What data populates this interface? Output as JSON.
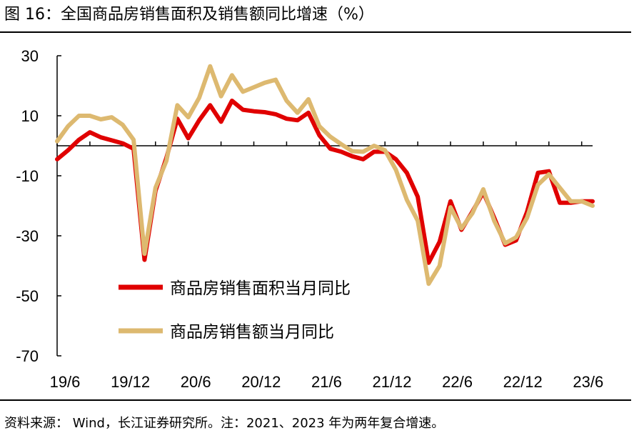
{
  "title": "图 16：全国商品房销售面积及销售额同比增速（%）",
  "footnote": "资料来源：  Wind，长江证券研究所。注：2021、2023 年为两年复合增速。",
  "colors": {
    "series_area": "#e00000",
    "series_amount": "#ddb970",
    "axis": "#000000"
  },
  "chart_data": {
    "type": "line",
    "title": "",
    "xlabel": "",
    "ylabel": "",
    "ylim": [
      -70,
      30
    ],
    "yticks": [
      30,
      10,
      -10,
      -30,
      -50,
      -70
    ],
    "xtick_labels": [
      "19/6",
      "19/12",
      "20/6",
      "20/12",
      "21/6",
      "21/12",
      "22/6",
      "22/12",
      "23/6"
    ],
    "x_start": "2019-06",
    "x_end": "2023-07",
    "legend_position": "lower-left",
    "grid": false,
    "series": [
      {
        "name": "商品房销售面积当月同比",
        "color": "#e00000",
        "points": [
          [
            "2019-06",
            -4.5
          ],
          [
            "2019-07",
            -1.5
          ],
          [
            "2019-08",
            2.0
          ],
          [
            "2019-09",
            4.5
          ],
          [
            "2019-10",
            2.8
          ],
          [
            "2019-11",
            1.8
          ],
          [
            "2019-12",
            0.8
          ],
          [
            "2020-01",
            -1.0
          ],
          [
            "2020-02",
            -38.0
          ],
          [
            "2020-03",
            -15.0
          ],
          [
            "2020-04",
            -4.0
          ],
          [
            "2020-05",
            9.0
          ],
          [
            "2020-06",
            2.5
          ],
          [
            "2020-07",
            8.5
          ],
          [
            "2020-08",
            13.5
          ],
          [
            "2020-09",
            8.0
          ],
          [
            "2020-10",
            15.0
          ],
          [
            "2020-11",
            12.0
          ],
          [
            "2020-12",
            11.5
          ],
          [
            "2021-01",
            11.2
          ],
          [
            "2021-02",
            10.5
          ],
          [
            "2021-03",
            9.0
          ],
          [
            "2021-04",
            8.5
          ],
          [
            "2021-05",
            11.0
          ],
          [
            "2021-06",
            3.5
          ],
          [
            "2021-07",
            -1.0
          ],
          [
            "2021-08",
            -2.0
          ],
          [
            "2021-09",
            -3.5
          ],
          [
            "2021-10",
            -4.5
          ],
          [
            "2021-11",
            -2.0
          ],
          [
            "2021-12",
            -2.0
          ],
          [
            "2022-01",
            -4.5
          ],
          [
            "2022-02",
            -9.0
          ],
          [
            "2022-03",
            -17.0
          ],
          [
            "2022-04",
            -39.0
          ],
          [
            "2022-05",
            -32.0
          ],
          [
            "2022-06",
            -18.5
          ],
          [
            "2022-07",
            -28.0
          ],
          [
            "2022-08",
            -22.0
          ],
          [
            "2022-09",
            -15.5
          ],
          [
            "2022-10",
            -24.0
          ],
          [
            "2022-11",
            -33.0
          ],
          [
            "2022-12",
            -31.5
          ],
          [
            "2023-01",
            -22.0
          ],
          [
            "2023-02",
            -9.0
          ],
          [
            "2023-03",
            -8.5
          ],
          [
            "2023-04",
            -19.0
          ],
          [
            "2023-05",
            -19.0
          ],
          [
            "2023-06",
            -18.5
          ],
          [
            "2023-07",
            -18.5
          ]
        ]
      },
      {
        "name": "商品房销售额当月同比",
        "color": "#ddb970",
        "points": [
          [
            "2019-06",
            1.5
          ],
          [
            "2019-07",
            6.5
          ],
          [
            "2019-08",
            10.0
          ],
          [
            "2019-09",
            10.0
          ],
          [
            "2019-10",
            8.8
          ],
          [
            "2019-11",
            9.5
          ],
          [
            "2019-12",
            7.0
          ],
          [
            "2020-01",
            2.0
          ],
          [
            "2020-02",
            -36.0
          ],
          [
            "2020-03",
            -14.0
          ],
          [
            "2020-04",
            -5.0
          ],
          [
            "2020-05",
            13.5
          ],
          [
            "2020-06",
            9.5
          ],
          [
            "2020-07",
            16.0
          ],
          [
            "2020-08",
            26.5
          ],
          [
            "2020-09",
            16.5
          ],
          [
            "2020-10",
            23.5
          ],
          [
            "2020-11",
            18.0
          ],
          [
            "2020-12",
            19.5
          ],
          [
            "2021-01",
            21.0
          ],
          [
            "2021-02",
            22.0
          ],
          [
            "2021-03",
            15.0
          ],
          [
            "2021-04",
            11.0
          ],
          [
            "2021-05",
            15.5
          ],
          [
            "2021-06",
            6.5
          ],
          [
            "2021-07",
            3.0
          ],
          [
            "2021-08",
            0.5
          ],
          [
            "2021-09",
            -1.8
          ],
          [
            "2021-10",
            -2.0
          ],
          [
            "2021-11",
            0.0
          ],
          [
            "2021-12",
            -1.5
          ],
          [
            "2022-01",
            -8.0
          ],
          [
            "2022-02",
            -18.0
          ],
          [
            "2022-03",
            -25.0
          ],
          [
            "2022-04",
            -46.0
          ],
          [
            "2022-05",
            -40.0
          ],
          [
            "2022-06",
            -20.5
          ],
          [
            "2022-07",
            -27.5
          ],
          [
            "2022-08",
            -22.5
          ],
          [
            "2022-09",
            -14.5
          ],
          [
            "2022-10",
            -25.0
          ],
          [
            "2022-11",
            -32.5
          ],
          [
            "2022-12",
            -30.5
          ],
          [
            "2023-01",
            -24.0
          ],
          [
            "2023-02",
            -13.0
          ],
          [
            "2023-03",
            -9.5
          ],
          [
            "2023-04",
            -14.0
          ],
          [
            "2023-05",
            -18.5
          ],
          [
            "2023-06",
            -18.5
          ],
          [
            "2023-07",
            -20.0
          ]
        ]
      }
    ]
  }
}
